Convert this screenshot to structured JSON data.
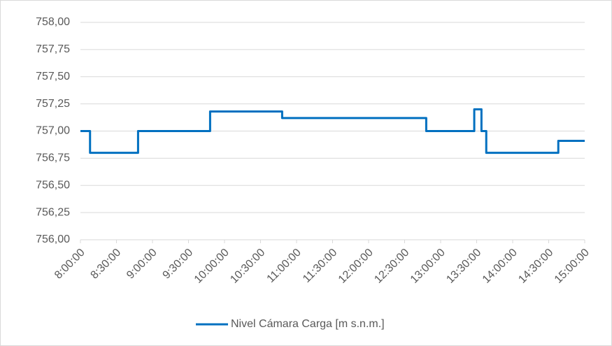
{
  "chart_data": {
    "type": "line",
    "x": [
      "8:00:00",
      "8:08:00",
      "8:08:00",
      "8:48:00",
      "8:48:00",
      "9:48:00",
      "9:48:00",
      "10:48:00",
      "10:48:00",
      "12:48:00",
      "12:48:00",
      "13:28:00",
      "13:28:00",
      "13:34:00",
      "13:34:00",
      "13:38:00",
      "13:38:00",
      "14:38:00",
      "14:38:00",
      "15:00:00"
    ],
    "series": [
      {
        "name": "Nivel Cámara Carga [m s.n.m.]",
        "color": "#0070c0",
        "values": [
          757.0,
          757.0,
          756.8,
          756.8,
          757.0,
          757.0,
          757.18,
          757.18,
          757.12,
          757.12,
          757.0,
          757.0,
          757.2,
          757.2,
          757.0,
          757.0,
          756.8,
          756.8,
          756.91,
          756.91
        ]
      }
    ],
    "xlim": [
      "8:00:00",
      "15:00:00"
    ],
    "xticks": [
      "8:00:00",
      "8:30:00",
      "9:00:00",
      "9:30:00",
      "10:00:00",
      "10:30:00",
      "11:00:00",
      "11:30:00",
      "12:00:00",
      "12:30:00",
      "13:00:00",
      "13:30:00",
      "14:00:00",
      "14:30:00",
      "15:00:00"
    ],
    "ylim": [
      756,
      758
    ],
    "yticks": [
      {
        "value": 756,
        "label": "756,00"
      },
      {
        "value": 756.25,
        "label": "756,25"
      },
      {
        "value": 756.5,
        "label": "756,50"
      },
      {
        "value": 756.75,
        "label": "756,75"
      },
      {
        "value": 757,
        "label": "757,00"
      },
      {
        "value": 757.25,
        "label": "757,25"
      },
      {
        "value": 757.5,
        "label": "757,50"
      },
      {
        "value": 757.75,
        "label": "757,75"
      },
      {
        "value": 758,
        "label": "758,00"
      }
    ],
    "grid": true,
    "legend": "bottom"
  }
}
